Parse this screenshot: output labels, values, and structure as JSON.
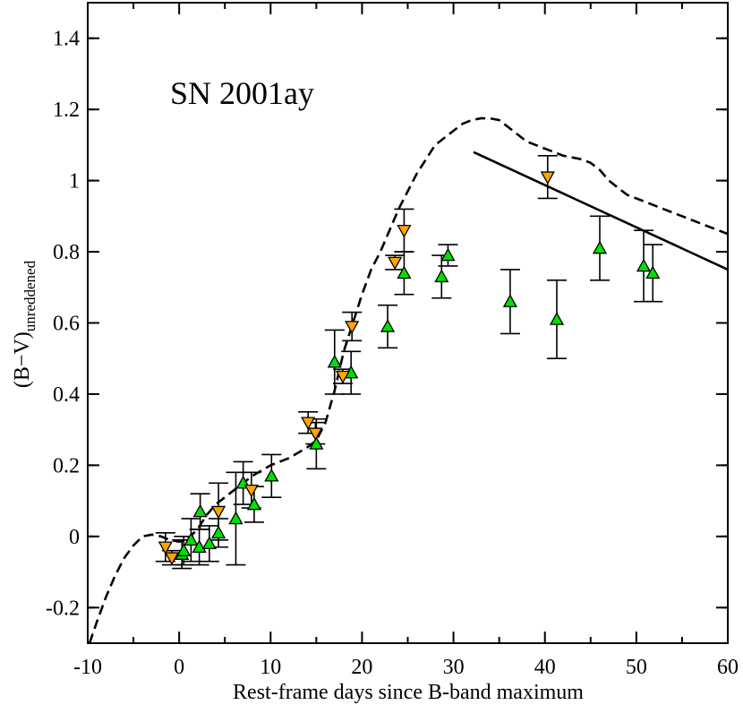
{
  "chart_data": {
    "type": "scatter",
    "title": "SN 2001ay",
    "xlabel": "Rest-frame days since B-band maximum",
    "ylabel_main": "(B−V)",
    "ylabel_sub": "unreddened",
    "xlim": [
      -10,
      60
    ],
    "ylim": [
      -0.3,
      1.5
    ],
    "x_ticks": [
      -10,
      0,
      10,
      20,
      30,
      40,
      50,
      60
    ],
    "x_tick_labels": [
      "-10",
      "0",
      "10",
      "20",
      "30",
      "40",
      "50",
      "60"
    ],
    "y_ticks": [
      -0.2,
      0,
      0.2,
      0.4,
      0.6,
      0.8,
      1.0,
      1.2,
      1.4
    ],
    "y_tick_labels": [
      "-0.2",
      "0",
      "0.2",
      "0.4",
      "0.6",
      "0.8",
      "1",
      "1.2",
      "1.4"
    ],
    "grid": false,
    "colors": {
      "green_marker": "#00e000",
      "orange_marker": "#ffa500",
      "line": "#000000"
    },
    "series": [
      {
        "marker": "triangle-up",
        "color": "#00e000",
        "points": [
          {
            "x": 0.3,
            "y": -0.05,
            "err": 0.04
          },
          {
            "x": 0.5,
            "y": -0.04,
            "err": 0.04
          },
          {
            "x": 1.3,
            "y": -0.01,
            "err": 0.06
          },
          {
            "x": 2.2,
            "y": -0.03,
            "err": 0.05
          },
          {
            "x": 2.3,
            "y": 0.07,
            "err": 0.05
          },
          {
            "x": 3.3,
            "y": -0.02,
            "err": 0.05
          },
          {
            "x": 4.3,
            "y": 0.01,
            "err": 0.04
          },
          {
            "x": 6.2,
            "y": 0.05,
            "err": 0.13
          },
          {
            "x": 7.0,
            "y": 0.15,
            "err": 0.06
          },
          {
            "x": 8.2,
            "y": 0.09,
            "err": 0.05
          },
          {
            "x": 10.1,
            "y": 0.17,
            "err": 0.06
          },
          {
            "x": 15.0,
            "y": 0.26,
            "err": 0.07
          },
          {
            "x": 17.0,
            "y": 0.49,
            "err": 0.09
          },
          {
            "x": 18.8,
            "y": 0.46,
            "err": 0.06
          },
          {
            "x": 22.8,
            "y": 0.59,
            "err": 0.06
          },
          {
            "x": 24.6,
            "y": 0.74,
            "err": 0.06
          },
          {
            "x": 28.7,
            "y": 0.73,
            "err": 0.06
          },
          {
            "x": 29.4,
            "y": 0.79,
            "err": 0.03
          },
          {
            "x": 36.2,
            "y": 0.66,
            "err": 0.09
          },
          {
            "x": 41.3,
            "y": 0.61,
            "err": 0.11
          },
          {
            "x": 46.0,
            "y": 0.81,
            "err": 0.09
          },
          {
            "x": 50.8,
            "y": 0.76,
            "err": 0.1
          },
          {
            "x": 51.8,
            "y": 0.74,
            "err": 0.08
          }
        ]
      },
      {
        "marker": "triangle-down",
        "color": "#ffa500",
        "points": [
          {
            "x": -1.5,
            "y": -0.03,
            "err": 0.04
          },
          {
            "x": -0.8,
            "y": -0.06,
            "err": 0.02
          },
          {
            "x": 4.3,
            "y": 0.07,
            "err": 0.08
          },
          {
            "x": 7.9,
            "y": 0.13,
            "err": 0.05
          },
          {
            "x": 14.1,
            "y": 0.32,
            "err": 0.03
          },
          {
            "x": 14.9,
            "y": 0.29,
            "err": 0.03
          },
          {
            "x": 17.9,
            "y": 0.45,
            "err": 0.02
          },
          {
            "x": 18.9,
            "y": 0.59,
            "err": 0.04
          },
          {
            "x": 23.6,
            "y": 0.77,
            "err": 0.02
          },
          {
            "x": 24.6,
            "y": 0.86,
            "err": 0.06
          },
          {
            "x": 40.3,
            "y": 1.01,
            "err": 0.06
          }
        ]
      }
    ],
    "dashed_curve": [
      [
        -9.8,
        -0.3
      ],
      [
        -9,
        -0.24
      ],
      [
        -8,
        -0.17
      ],
      [
        -7,
        -0.11
      ],
      [
        -6,
        -0.06
      ],
      [
        -5,
        -0.025
      ],
      [
        -4,
        0.0
      ],
      [
        -3,
        0.005
      ],
      [
        -2,
        0.0
      ],
      [
        -1,
        -0.01
      ],
      [
        0,
        -0.015
      ],
      [
        1,
        -0.005
      ],
      [
        2,
        0.02
      ],
      [
        3,
        0.06
      ],
      [
        4,
        0.09
      ],
      [
        5,
        0.11
      ],
      [
        6,
        0.13
      ],
      [
        7,
        0.15
      ],
      [
        8,
        0.17
      ],
      [
        9,
        0.185
      ],
      [
        10,
        0.2
      ],
      [
        11,
        0.21
      ],
      [
        12,
        0.22
      ],
      [
        13,
        0.235
      ],
      [
        14,
        0.25
      ],
      [
        15,
        0.27
      ],
      [
        16,
        0.32
      ],
      [
        17,
        0.41
      ],
      [
        18,
        0.52
      ],
      [
        19,
        0.6
      ],
      [
        20,
        0.68
      ],
      [
        21,
        0.75
      ],
      [
        22,
        0.8
      ],
      [
        23,
        0.86
      ],
      [
        24,
        0.92
      ],
      [
        25,
        0.97
      ],
      [
        26,
        1.02
      ],
      [
        27,
        1.06
      ],
      [
        28,
        1.1
      ],
      [
        29,
        1.12
      ],
      [
        30,
        1.14
      ],
      [
        31,
        1.16
      ],
      [
        32,
        1.17
      ],
      [
        33,
        1.175
      ],
      [
        34,
        1.175
      ],
      [
        35,
        1.17
      ],
      [
        36,
        1.15
      ],
      [
        37,
        1.13
      ],
      [
        38,
        1.11
      ],
      [
        39,
        1.1
      ],
      [
        40,
        1.09
      ],
      [
        41,
        1.08
      ],
      [
        42,
        1.07
      ],
      [
        43,
        1.065
      ],
      [
        44,
        1.06
      ],
      [
        45,
        1.05
      ],
      [
        46,
        1.03
      ],
      [
        47,
        1.0
      ],
      [
        48,
        0.98
      ],
      [
        49,
        0.96
      ],
      [
        50,
        0.95
      ],
      [
        51,
        0.94
      ],
      [
        52,
        0.93
      ],
      [
        53,
        0.92
      ],
      [
        54,
        0.91
      ],
      [
        55,
        0.9
      ],
      [
        56,
        0.89
      ],
      [
        57,
        0.88
      ],
      [
        58,
        0.87
      ],
      [
        59,
        0.86
      ],
      [
        60,
        0.85
      ]
    ],
    "solid_line": [
      [
        32.2,
        1.08
      ],
      [
        60,
        0.75
      ]
    ]
  }
}
